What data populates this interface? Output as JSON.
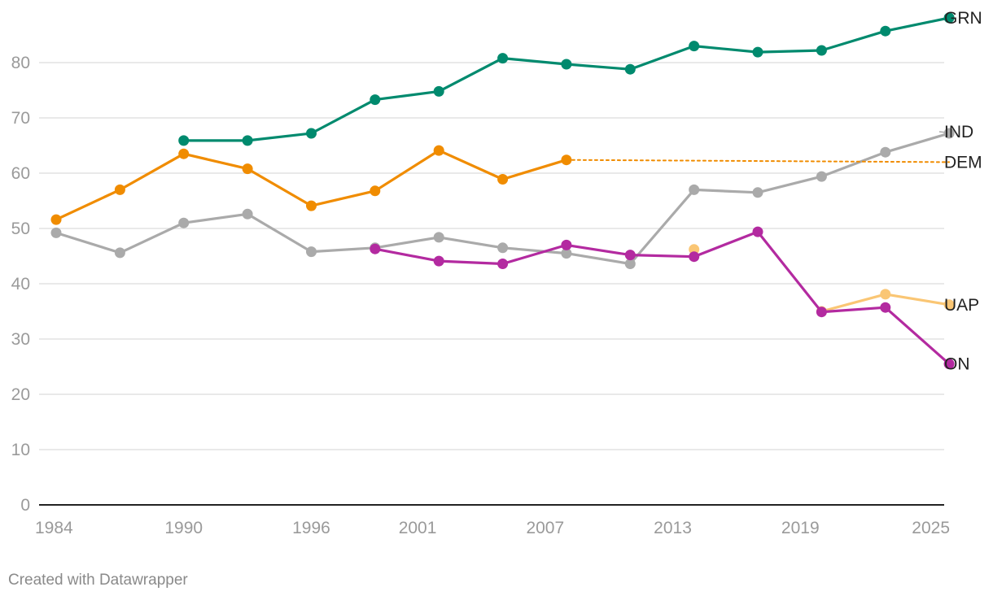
{
  "chart_data": {
    "type": "line",
    "title": "",
    "xlabel": "",
    "ylabel": "",
    "xlim": [
      1984,
      2025
    ],
    "ylim": [
      0,
      90
    ],
    "yticks": [
      0,
      10,
      20,
      30,
      40,
      50,
      60,
      70,
      80
    ],
    "xticks": [
      "1984",
      "1990",
      "1996",
      "2001",
      "2007",
      "2013",
      "2019",
      "2025"
    ],
    "grid": true,
    "series": [
      {
        "name": "GRN",
        "label": "GRN",
        "color": "#008a6e",
        "style": "solid",
        "points": [
          [
            1990,
            65.9
          ],
          [
            1993,
            65.9
          ],
          [
            1996,
            67.2
          ],
          [
            1999,
            73.3
          ],
          [
            2002,
            74.8
          ],
          [
            2005,
            80.8
          ],
          [
            2008,
            79.7
          ],
          [
            2011,
            78.8
          ],
          [
            2014,
            83.0
          ],
          [
            2017,
            81.9
          ],
          [
            2020,
            82.2
          ],
          [
            2023,
            85.7
          ],
          [
            2026,
            88.1
          ]
        ]
      },
      {
        "name": "IND",
        "label": "IND",
        "color": "#aaaaaa",
        "style": "solid",
        "points": [
          [
            1984,
            49.2
          ],
          [
            1987,
            45.6
          ],
          [
            1990,
            51.0
          ],
          [
            1993,
            52.6
          ],
          [
            1996,
            45.8
          ],
          [
            1999,
            46.5
          ],
          [
            2002,
            48.4
          ],
          [
            2005,
            46.5
          ],
          [
            2008,
            45.5
          ],
          [
            2011,
            43.6
          ],
          [
            2014,
            57.0
          ],
          [
            2017,
            56.5
          ],
          [
            2020,
            59.4
          ],
          [
            2023,
            63.8
          ],
          [
            2026,
            67.2
          ]
        ]
      },
      {
        "name": "DEM",
        "label": "DEM",
        "color": "#f08c00",
        "style": "solid",
        "points": [
          [
            1984,
            51.6
          ],
          [
            1987,
            57.0
          ],
          [
            1990,
            63.5
          ],
          [
            1993,
            60.8
          ],
          [
            1996,
            54.1
          ],
          [
            1999,
            56.8
          ],
          [
            2002,
            64.1
          ],
          [
            2005,
            58.9
          ],
          [
            2008,
            62.4
          ]
        ]
      },
      {
        "name": "DEM (projection)",
        "label": "",
        "color": "#f08c00",
        "style": "dotted",
        "points": [
          [
            2008,
            62.4
          ],
          [
            2026,
            62.0
          ]
        ]
      },
      {
        "name": "UAP",
        "label": "UAP",
        "color": "#fac674",
        "style": "solid",
        "points": [
          [
            2014,
            46.2
          ],
          [
            2020,
            35.0
          ],
          [
            2023,
            38.1
          ],
          [
            2026,
            36.2
          ]
        ],
        "segments_break_after": [
          0
        ]
      },
      {
        "name": "ON",
        "label": "ON",
        "color": "#b32aa0",
        "style": "solid",
        "points": [
          [
            1999,
            46.3
          ],
          [
            2002,
            44.1
          ],
          [
            2005,
            43.6
          ],
          [
            2008,
            47.0
          ],
          [
            2011,
            45.2
          ],
          [
            2014,
            44.9
          ],
          [
            2017,
            49.4
          ],
          [
            2020,
            34.9
          ],
          [
            2023,
            35.7
          ],
          [
            2026,
            25.5
          ]
        ]
      }
    ]
  },
  "footer": {
    "credit": "Created with Datawrapper"
  }
}
